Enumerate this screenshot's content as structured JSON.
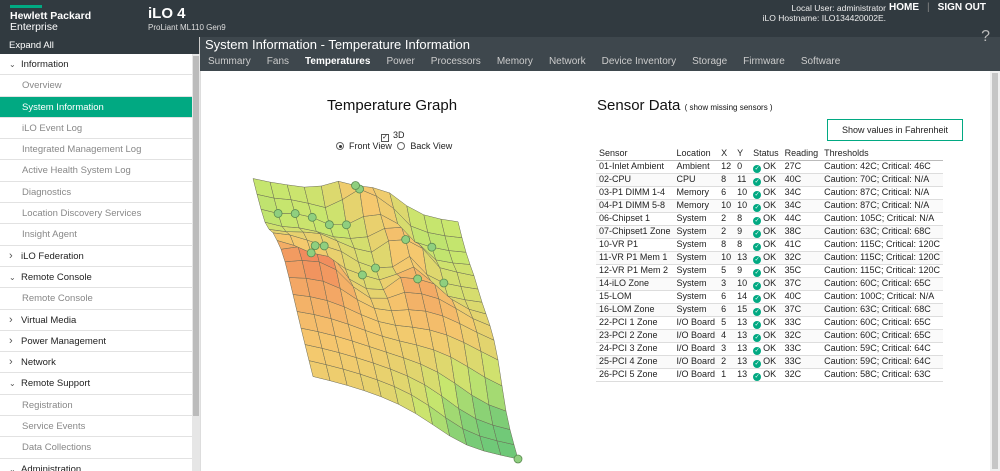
{
  "header": {
    "brand_line1": "Hewlett Packard",
    "brand_line2": "Enterprise",
    "product_name": "iLO 4",
    "product_model": "ProLiant ML110 Gen9",
    "local_user": "Local User: administrator",
    "ilo_hostname": "iLO Hostname: ILO134420002E.",
    "home_label": "HOME",
    "signout_label": "SIGN OUT"
  },
  "sidebar": {
    "expand_all": "Expand All",
    "items": [
      {
        "label": "Information",
        "type": "section",
        "expanded": true
      },
      {
        "label": "Overview",
        "type": "sub"
      },
      {
        "label": "System Information",
        "type": "sub",
        "active": true
      },
      {
        "label": "iLO Event Log",
        "type": "sub"
      },
      {
        "label": "Integrated Management Log",
        "type": "sub"
      },
      {
        "label": "Active Health System Log",
        "type": "sub"
      },
      {
        "label": "Diagnostics",
        "type": "sub"
      },
      {
        "label": "Location Discovery Services",
        "type": "sub"
      },
      {
        "label": "Insight Agent",
        "type": "sub"
      },
      {
        "label": "iLO Federation",
        "type": "section",
        "expanded": false
      },
      {
        "label": "Remote Console",
        "type": "section",
        "expanded": true
      },
      {
        "label": "Remote Console",
        "type": "sub"
      },
      {
        "label": "Virtual Media",
        "type": "section",
        "expanded": false
      },
      {
        "label": "Power Management",
        "type": "section",
        "expanded": false
      },
      {
        "label": "Network",
        "type": "section",
        "expanded": false
      },
      {
        "label": "Remote Support",
        "type": "section",
        "expanded": true
      },
      {
        "label": "Registration",
        "type": "sub"
      },
      {
        "label": "Service Events",
        "type": "sub"
      },
      {
        "label": "Data Collections",
        "type": "sub"
      },
      {
        "label": "Administration",
        "type": "section",
        "expanded": true
      }
    ]
  },
  "page": {
    "title_prefix": "System Information - ",
    "title_main": "Temperature Information",
    "tabs": [
      "Summary",
      "Fans",
      "Temperatures",
      "Power",
      "Processors",
      "Memory",
      "Network",
      "Device Inventory",
      "Storage",
      "Firmware",
      "Software"
    ],
    "active_tab": "Temperatures"
  },
  "graph": {
    "title": "Temperature Graph",
    "opt_3d": "3D",
    "opt_3d_checked": true,
    "front_view": "Front View",
    "back_view": "Back View",
    "selected_view": "Front View"
  },
  "sensors": {
    "title": "Sensor Data",
    "missing_link": "( show missing sensors )",
    "fahrenheit_button": "Show values in Fahrenheit",
    "columns": [
      "Sensor",
      "Location",
      "X",
      "Y",
      "Status",
      "Reading",
      "Thresholds"
    ],
    "rows": [
      [
        "01-Inlet Ambient",
        "Ambient",
        "12",
        "0",
        "OK",
        "27C",
        "Caution: 42C; Critical: 46C"
      ],
      [
        "02-CPU",
        "CPU",
        "8",
        "11",
        "OK",
        "40C",
        "Caution: 70C; Critical: N/A"
      ],
      [
        "03-P1 DIMM 1-4",
        "Memory",
        "6",
        "10",
        "OK",
        "34C",
        "Caution: 87C; Critical: N/A"
      ],
      [
        "04-P1 DIMM 5-8",
        "Memory",
        "10",
        "10",
        "OK",
        "34C",
        "Caution: 87C; Critical: N/A"
      ],
      [
        "06-Chipset 1",
        "System",
        "2",
        "8",
        "OK",
        "44C",
        "Caution: 105C; Critical: N/A"
      ],
      [
        "07-Chipset1 Zone",
        "System",
        "2",
        "9",
        "OK",
        "38C",
        "Caution: 63C; Critical: 68C"
      ],
      [
        "10-VR P1",
        "System",
        "8",
        "8",
        "OK",
        "41C",
        "Caution: 115C; Critical: 120C"
      ],
      [
        "11-VR P1 Mem 1",
        "System",
        "10",
        "13",
        "OK",
        "32C",
        "Caution: 115C; Critical: 120C"
      ],
      [
        "12-VR P1 Mem 2",
        "System",
        "5",
        "9",
        "OK",
        "35C",
        "Caution: 115C; Critical: 120C"
      ],
      [
        "14-iLO Zone",
        "System",
        "3",
        "10",
        "OK",
        "37C",
        "Caution: 60C; Critical: 65C"
      ],
      [
        "15-LOM",
        "System",
        "6",
        "14",
        "OK",
        "40C",
        "Caution: 100C; Critical: N/A"
      ],
      [
        "16-LOM Zone",
        "System",
        "6",
        "15",
        "OK",
        "37C",
        "Caution: 63C; Critical: 68C"
      ],
      [
        "22-PCI 1 Zone",
        "I/O Board",
        "5",
        "13",
        "OK",
        "33C",
        "Caution: 60C; Critical: 65C"
      ],
      [
        "23-PCI 2 Zone",
        "I/O Board",
        "4",
        "13",
        "OK",
        "32C",
        "Caution: 60C; Critical: 65C"
      ],
      [
        "24-PCI 3 Zone",
        "I/O Board",
        "3",
        "13",
        "OK",
        "33C",
        "Caution: 59C; Critical: 64C"
      ],
      [
        "25-PCI 4 Zone",
        "I/O Board",
        "2",
        "13",
        "OK",
        "33C",
        "Caution: 59C; Critical: 64C"
      ],
      [
        "26-PCI 5 Zone",
        "I/O Board",
        "1",
        "13",
        "OK",
        "32C",
        "Caution: 58C; Critical: 63C"
      ]
    ]
  },
  "colors": {
    "accent": "#01a982",
    "header_bg": "#313a40",
    "subheader_bg": "#3e474d"
  }
}
